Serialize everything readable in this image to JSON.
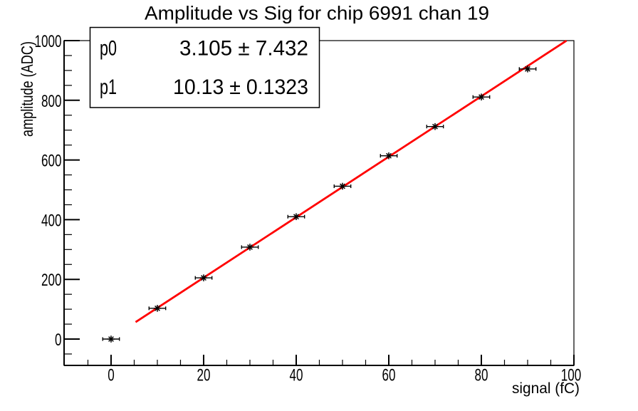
{
  "title": "Amplitude vs Sig for chip 6991 chan 19",
  "stats": {
    "rows": [
      {
        "label": "p0",
        "value": "3.105 ± 7.432"
      },
      {
        "label": "p1",
        "value": "10.13 ± 0.1323"
      }
    ]
  },
  "chart_data": {
    "type": "scatter",
    "title": "Amplitude vs Sig for chip 6991 chan 19",
    "xlabel": "signal (fC)",
    "ylabel": "amplitude (ADC)",
    "x": [
      0,
      10,
      20,
      30,
      40,
      50,
      60,
      70,
      80,
      90
    ],
    "y": [
      0,
      103,
      205,
      308,
      410,
      512,
      614,
      712,
      811,
      905
    ],
    "xerr": 1.8,
    "fit": {
      "p0": 3.105,
      "p1": 10.13,
      "x_start": 5.3,
      "x_end": 98.4,
      "color": "#ff0000",
      "width": 2.8
    },
    "xticks": [
      0,
      20,
      40,
      60,
      80,
      100
    ],
    "yticks": [
      0,
      200,
      400,
      600,
      800,
      1000
    ],
    "x_minor_step": 5,
    "y_minor_step": 50,
    "xlim": [
      -10.15,
      100
    ],
    "ylim": [
      -88.3,
      1000
    ],
    "grid": false,
    "legend": false,
    "marker": "asterisk",
    "marker_color": "#000000",
    "axis_color": "#000000",
    "background": "#ffffff"
  }
}
